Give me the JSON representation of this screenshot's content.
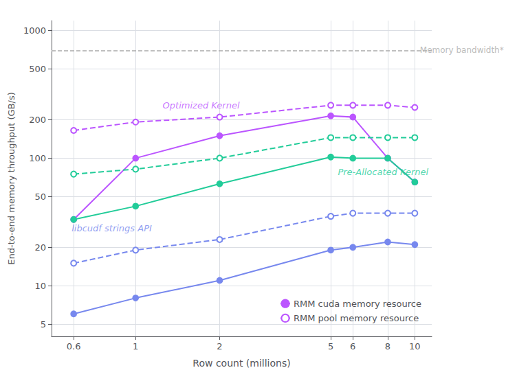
{
  "chart_data": {
    "type": "line",
    "xlabel": "Row count (millions)",
    "ylabel": "End-to-end memory throughput (GB/s)",
    "log": true,
    "grid": true,
    "legend": "lower right",
    "x": [
      0.6,
      1,
      2,
      5,
      6,
      8,
      10
    ],
    "xlim": [
      0.5,
      11.5
    ],
    "xticks": [
      0.6,
      1,
      2,
      5,
      6,
      8,
      10
    ],
    "ylim": [
      4,
      1200
    ],
    "yticks": [
      5,
      10,
      20,
      50,
      100,
      200,
      500,
      1000
    ],
    "series": [
      {
        "name": "RMM cuda memory resource",
        "color": "#bb55ff",
        "line_style": "solid",
        "marker": "circle",
        "values": [
          33,
          100,
          150,
          215,
          210,
          100,
          65
        ]
      },
      {
        "name": "RMM pool memory resource",
        "color": "#bb55ff",
        "line_style": "dashed",
        "marker": "open_circle",
        "values": [
          165,
          192,
          210,
          260,
          260,
          260,
          250
        ]
      },
      {
        "name": "RMM cuda memory resource",
        "color": "#22cc99",
        "line_style": "solid",
        "marker": "circle",
        "values": [
          33,
          42,
          63,
          102,
          100,
          100,
          65
        ]
      },
      {
        "name": "RMM pool memory resource",
        "color": "#22cc99",
        "line_style": "dashed",
        "marker": "open_circle",
        "values": [
          75,
          82,
          100,
          145,
          145,
          145,
          145
        ]
      },
      {
        "name": "RMM cuda memory resource",
        "color": "#7788ee",
        "line_style": "solid",
        "marker": "circle",
        "values": [
          6,
          8,
          11,
          19,
          20,
          22,
          21
        ]
      },
      {
        "name": "RMM pool memory resource",
        "color": "#7788ee",
        "line_style": "dashed",
        "marker": "open_circle",
        "values": [
          15,
          19,
          23,
          35,
          37,
          37,
          37
        ]
      }
    ],
    "reference_lines": [
      {
        "y": 700,
        "label": "Memory bandwidth*",
        "x": 10.2,
        "color": "#aaaaaa",
        "line_style": "dashed"
      }
    ],
    "annotations": [
      {
        "text": "Optimized Kernel",
        "x": 1.25,
        "y": 240,
        "color": "#bb55ff"
      },
      {
        "text": "Pre-Allocated Kernel",
        "x": 5.3,
        "y": 72,
        "color": "#22cc99"
      },
      {
        "text": "libcudf strings API",
        "x": 0.59,
        "y": 26,
        "color": "#7788ee"
      }
    ]
  }
}
